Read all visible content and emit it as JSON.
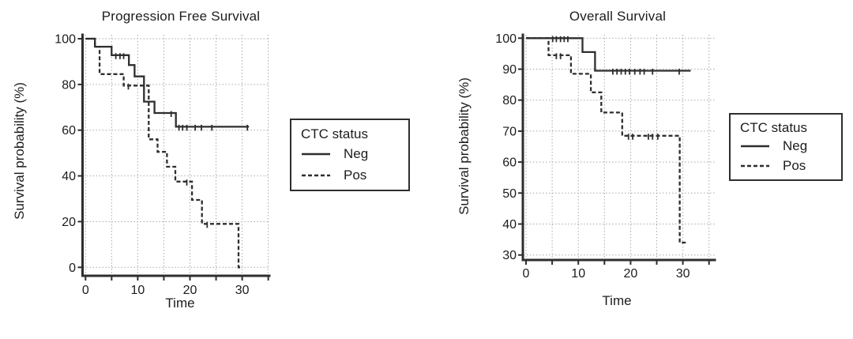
{
  "colors": {
    "line": "#2e2e2e",
    "grid": "#a8a8a8",
    "text": "#1c1c1c",
    "background": "#ffffff"
  },
  "chart_data": [
    {
      "type": "line",
      "subtype": "kaplan-meier-step",
      "title": "Progression Free Survival",
      "xlabel": "Time",
      "ylabel": "Survival probability (%)",
      "xlim": [
        0,
        35
      ],
      "ylim": [
        0,
        100
      ],
      "xticks_labeled": [
        0,
        10,
        20,
        30
      ],
      "xticks_minor": [
        5,
        15,
        25,
        35
      ],
      "yticks": [
        0,
        20,
        40,
        60,
        80,
        100
      ],
      "grid_x": [
        0,
        5,
        10,
        15,
        20,
        25,
        30,
        35
      ],
      "grid_y": [
        0,
        20,
        40,
        60,
        80,
        100
      ],
      "grid_on": true,
      "legend": {
        "title": "CTC status",
        "position": "right",
        "entries": [
          {
            "label": "Neg",
            "style": "solid"
          },
          {
            "label": "Pos",
            "style": "dashed"
          }
        ]
      },
      "series": [
        {
          "name": "Neg",
          "style": "solid",
          "steps": [
            [
              0,
              100
            ],
            [
              1.8,
              96.5
            ],
            [
              5,
              92.8
            ],
            [
              8.3,
              88.5
            ],
            [
              9.4,
              83.5
            ],
            [
              11.2,
              72.5
            ],
            [
              13.2,
              67.5
            ],
            [
              17.3,
              61.5
            ]
          ],
          "end": 31.3,
          "censors": [
            [
              5.8,
              92.8
            ],
            [
              6.6,
              92.8
            ],
            [
              7.3,
              92.8
            ],
            [
              16.4,
              67.5
            ],
            [
              17.9,
              61.5
            ],
            [
              18.6,
              61.5
            ],
            [
              19.4,
              61.5
            ],
            [
              21.0,
              61.5
            ],
            [
              22.2,
              61.5
            ],
            [
              24.2,
              61.5
            ],
            [
              31.0,
              61.5
            ]
          ]
        },
        {
          "name": "Pos",
          "style": "dashed",
          "steps": [
            [
              0,
              100
            ],
            [
              1.8,
              96.5
            ],
            [
              2.7,
              84.5
            ],
            [
              7.3,
              79.5
            ],
            [
              12.1,
              56
            ],
            [
              13.8,
              50.5
            ],
            [
              15.6,
              44
            ],
            [
              17.2,
              37.5
            ],
            [
              20.4,
              29.5
            ],
            [
              22.3,
              19
            ],
            [
              29.3,
              0
            ]
          ],
          "end": 29.8,
          "censors": [
            [
              8.2,
              79.5
            ],
            [
              19.4,
              37.5
            ],
            [
              23.3,
              19
            ]
          ]
        }
      ]
    },
    {
      "type": "line",
      "subtype": "kaplan-meier-step",
      "title": "Overall Survival",
      "xlabel": "Time",
      "ylabel": "Survival probability (%)",
      "xlim": [
        0,
        35
      ],
      "ylim": [
        30,
        100
      ],
      "xticks_labeled": [
        0,
        10,
        20,
        30
      ],
      "xticks_minor": [
        5,
        15,
        25,
        35
      ],
      "yticks": [
        30,
        40,
        50,
        60,
        70,
        80,
        90,
        100
      ],
      "grid_x": [
        0,
        5,
        10,
        15,
        20,
        25,
        30,
        35
      ],
      "grid_y": [
        30,
        40,
        50,
        60,
        70,
        80,
        90,
        100
      ],
      "grid_on": true,
      "legend": {
        "title": "CTC status",
        "position": "right",
        "entries": [
          {
            "label": "Neg",
            "style": "solid"
          },
          {
            "label": "Pos",
            "style": "dashed"
          }
        ]
      },
      "series": [
        {
          "name": "Neg",
          "style": "solid",
          "steps": [
            [
              0,
              100
            ],
            [
              10.8,
              95.5
            ],
            [
              13.2,
              89.5
            ]
          ],
          "end": 31.5,
          "censors": [
            [
              5.1,
              100
            ],
            [
              5.8,
              100
            ],
            [
              6.6,
              100
            ],
            [
              7.3,
              100
            ],
            [
              8.0,
              100
            ],
            [
              16.6,
              89.5
            ],
            [
              17.4,
              89.5
            ],
            [
              18.2,
              89.5
            ],
            [
              19.0,
              89.5
            ],
            [
              19.8,
              89.5
            ],
            [
              20.8,
              89.5
            ],
            [
              21.8,
              89.5
            ],
            [
              22.6,
              89.5
            ],
            [
              24.2,
              89.5
            ],
            [
              29.3,
              89.5
            ]
          ]
        },
        {
          "name": "Pos",
          "style": "dashed",
          "steps": [
            [
              0,
              100
            ],
            [
              4.3,
              94.5
            ],
            [
              8.6,
              88.5
            ],
            [
              12.4,
              82.5
            ],
            [
              14.4,
              76
            ],
            [
              18.4,
              68.5
            ],
            [
              29.4,
              34
            ]
          ],
          "end": 30.8,
          "censors": [
            [
              5.8,
              94.5
            ],
            [
              6.6,
              94.5
            ],
            [
              19.6,
              68.5
            ],
            [
              20.4,
              68.5
            ],
            [
              23.4,
              68.5
            ],
            [
              24.2,
              68.5
            ],
            [
              25.2,
              68.5
            ]
          ]
        }
      ]
    }
  ]
}
